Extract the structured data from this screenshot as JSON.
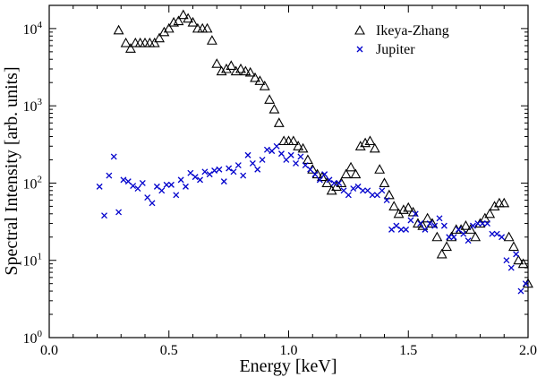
{
  "chart_data": {
    "type": "scatter",
    "title": "",
    "xlabel": "Energy [keV]",
    "ylabel": "Spectral Intensity [arb. units]",
    "xlim": [
      0.0,
      2.0
    ],
    "ylim_log10": [
      0,
      4.3
    ],
    "yscale": "log",
    "legend_position": "top-right",
    "x_ticks": [
      "0.0",
      "0.5",
      "1.0",
      "1.5",
      "2.0"
    ],
    "y_ticks": [
      {
        "base": "10",
        "exp": "0"
      },
      {
        "base": "10",
        "exp": "1"
      },
      {
        "base": "10",
        "exp": "2"
      },
      {
        "base": "10",
        "exp": "3"
      },
      {
        "base": "10",
        "exp": "4"
      }
    ],
    "series": [
      {
        "name": "Ikeya-Zhang",
        "marker": "triangle",
        "color": "#000000",
        "x": [
          0.29,
          0.32,
          0.34,
          0.36,
          0.38,
          0.4,
          0.42,
          0.44,
          0.46,
          0.48,
          0.5,
          0.52,
          0.54,
          0.56,
          0.58,
          0.6,
          0.62,
          0.64,
          0.66,
          0.68,
          0.7,
          0.72,
          0.74,
          0.76,
          0.78,
          0.8,
          0.82,
          0.84,
          0.86,
          0.88,
          0.9,
          0.92,
          0.94,
          0.96,
          0.98,
          1.0,
          1.02,
          1.04,
          1.06,
          1.08,
          1.1,
          1.12,
          1.14,
          1.16,
          1.18,
          1.2,
          1.22,
          1.24,
          1.26,
          1.28,
          1.3,
          1.32,
          1.34,
          1.36,
          1.38,
          1.4,
          1.42,
          1.44,
          1.46,
          1.48,
          1.5,
          1.52,
          1.54,
          1.56,
          1.58,
          1.6,
          1.62,
          1.64,
          1.66,
          1.68,
          1.7,
          1.72,
          1.74,
          1.76,
          1.78,
          1.8,
          1.82,
          1.84,
          1.86,
          1.88,
          1.9,
          1.92,
          1.94,
          1.96,
          1.98,
          2.0
        ],
        "y": [
          9500,
          6500,
          5500,
          6500,
          6500,
          6500,
          6500,
          6500,
          7500,
          9000,
          10000,
          12000,
          12500,
          15000,
          13500,
          12000,
          10000,
          10000,
          10000,
          7000,
          3500,
          2800,
          3000,
          3300,
          2800,
          3000,
          2800,
          2700,
          2300,
          2100,
          1800,
          1200,
          900,
          600,
          350,
          350,
          350,
          300,
          280,
          200,
          150,
          130,
          120,
          100,
          80,
          90,
          100,
          130,
          160,
          130,
          300,
          330,
          350,
          280,
          150,
          100,
          70,
          50,
          40,
          45,
          48,
          42,
          30,
          28,
          35,
          30,
          20,
          12,
          15,
          20,
          25,
          25,
          28,
          25,
          20,
          30,
          35,
          40,
          50,
          55,
          55,
          20,
          15,
          10,
          9,
          5
        ]
      },
      {
        "name": "Jupiter",
        "marker": "x",
        "color": "#0000cc",
        "x": [
          0.21,
          0.23,
          0.25,
          0.27,
          0.29,
          0.31,
          0.33,
          0.35,
          0.37,
          0.39,
          0.41,
          0.43,
          0.45,
          0.47,
          0.49,
          0.51,
          0.53,
          0.55,
          0.57,
          0.59,
          0.61,
          0.63,
          0.65,
          0.67,
          0.69,
          0.71,
          0.73,
          0.75,
          0.77,
          0.79,
          0.81,
          0.83,
          0.85,
          0.87,
          0.89,
          0.91,
          0.93,
          0.95,
          0.97,
          0.99,
          1.01,
          1.03,
          1.05,
          1.07,
          1.09,
          1.11,
          1.13,
          1.15,
          1.17,
          1.19,
          1.21,
          1.23,
          1.25,
          1.27,
          1.29,
          1.31,
          1.33,
          1.35,
          1.37,
          1.39,
          1.41,
          1.43,
          1.45,
          1.47,
          1.49,
          1.51,
          1.53,
          1.55,
          1.57,
          1.59,
          1.61,
          1.63,
          1.65,
          1.67,
          1.69,
          1.71,
          1.73,
          1.75,
          1.77,
          1.79,
          1.81,
          1.83,
          1.85,
          1.87,
          1.89,
          1.91,
          1.93,
          1.95,
          1.97,
          1.99
        ],
        "y": [
          90,
          38,
          125,
          220,
          42,
          110,
          105,
          92,
          85,
          100,
          65,
          55,
          90,
          80,
          95,
          95,
          70,
          110,
          90,
          135,
          120,
          110,
          140,
          130,
          145,
          150,
          105,
          155,
          140,
          170,
          125,
          230,
          180,
          150,
          200,
          270,
          260,
          300,
          240,
          200,
          230,
          180,
          220,
          170,
          150,
          130,
          110,
          130,
          110,
          100,
          100,
          80,
          70,
          85,
          90,
          80,
          80,
          70,
          70,
          80,
          60,
          25,
          28,
          25,
          25,
          33,
          40,
          30,
          25,
          30,
          28,
          35,
          28,
          20,
          20,
          25,
          22,
          18,
          28,
          30,
          30,
          30,
          22,
          22,
          20,
          10,
          8,
          12,
          4,
          5
        ]
      }
    ]
  }
}
